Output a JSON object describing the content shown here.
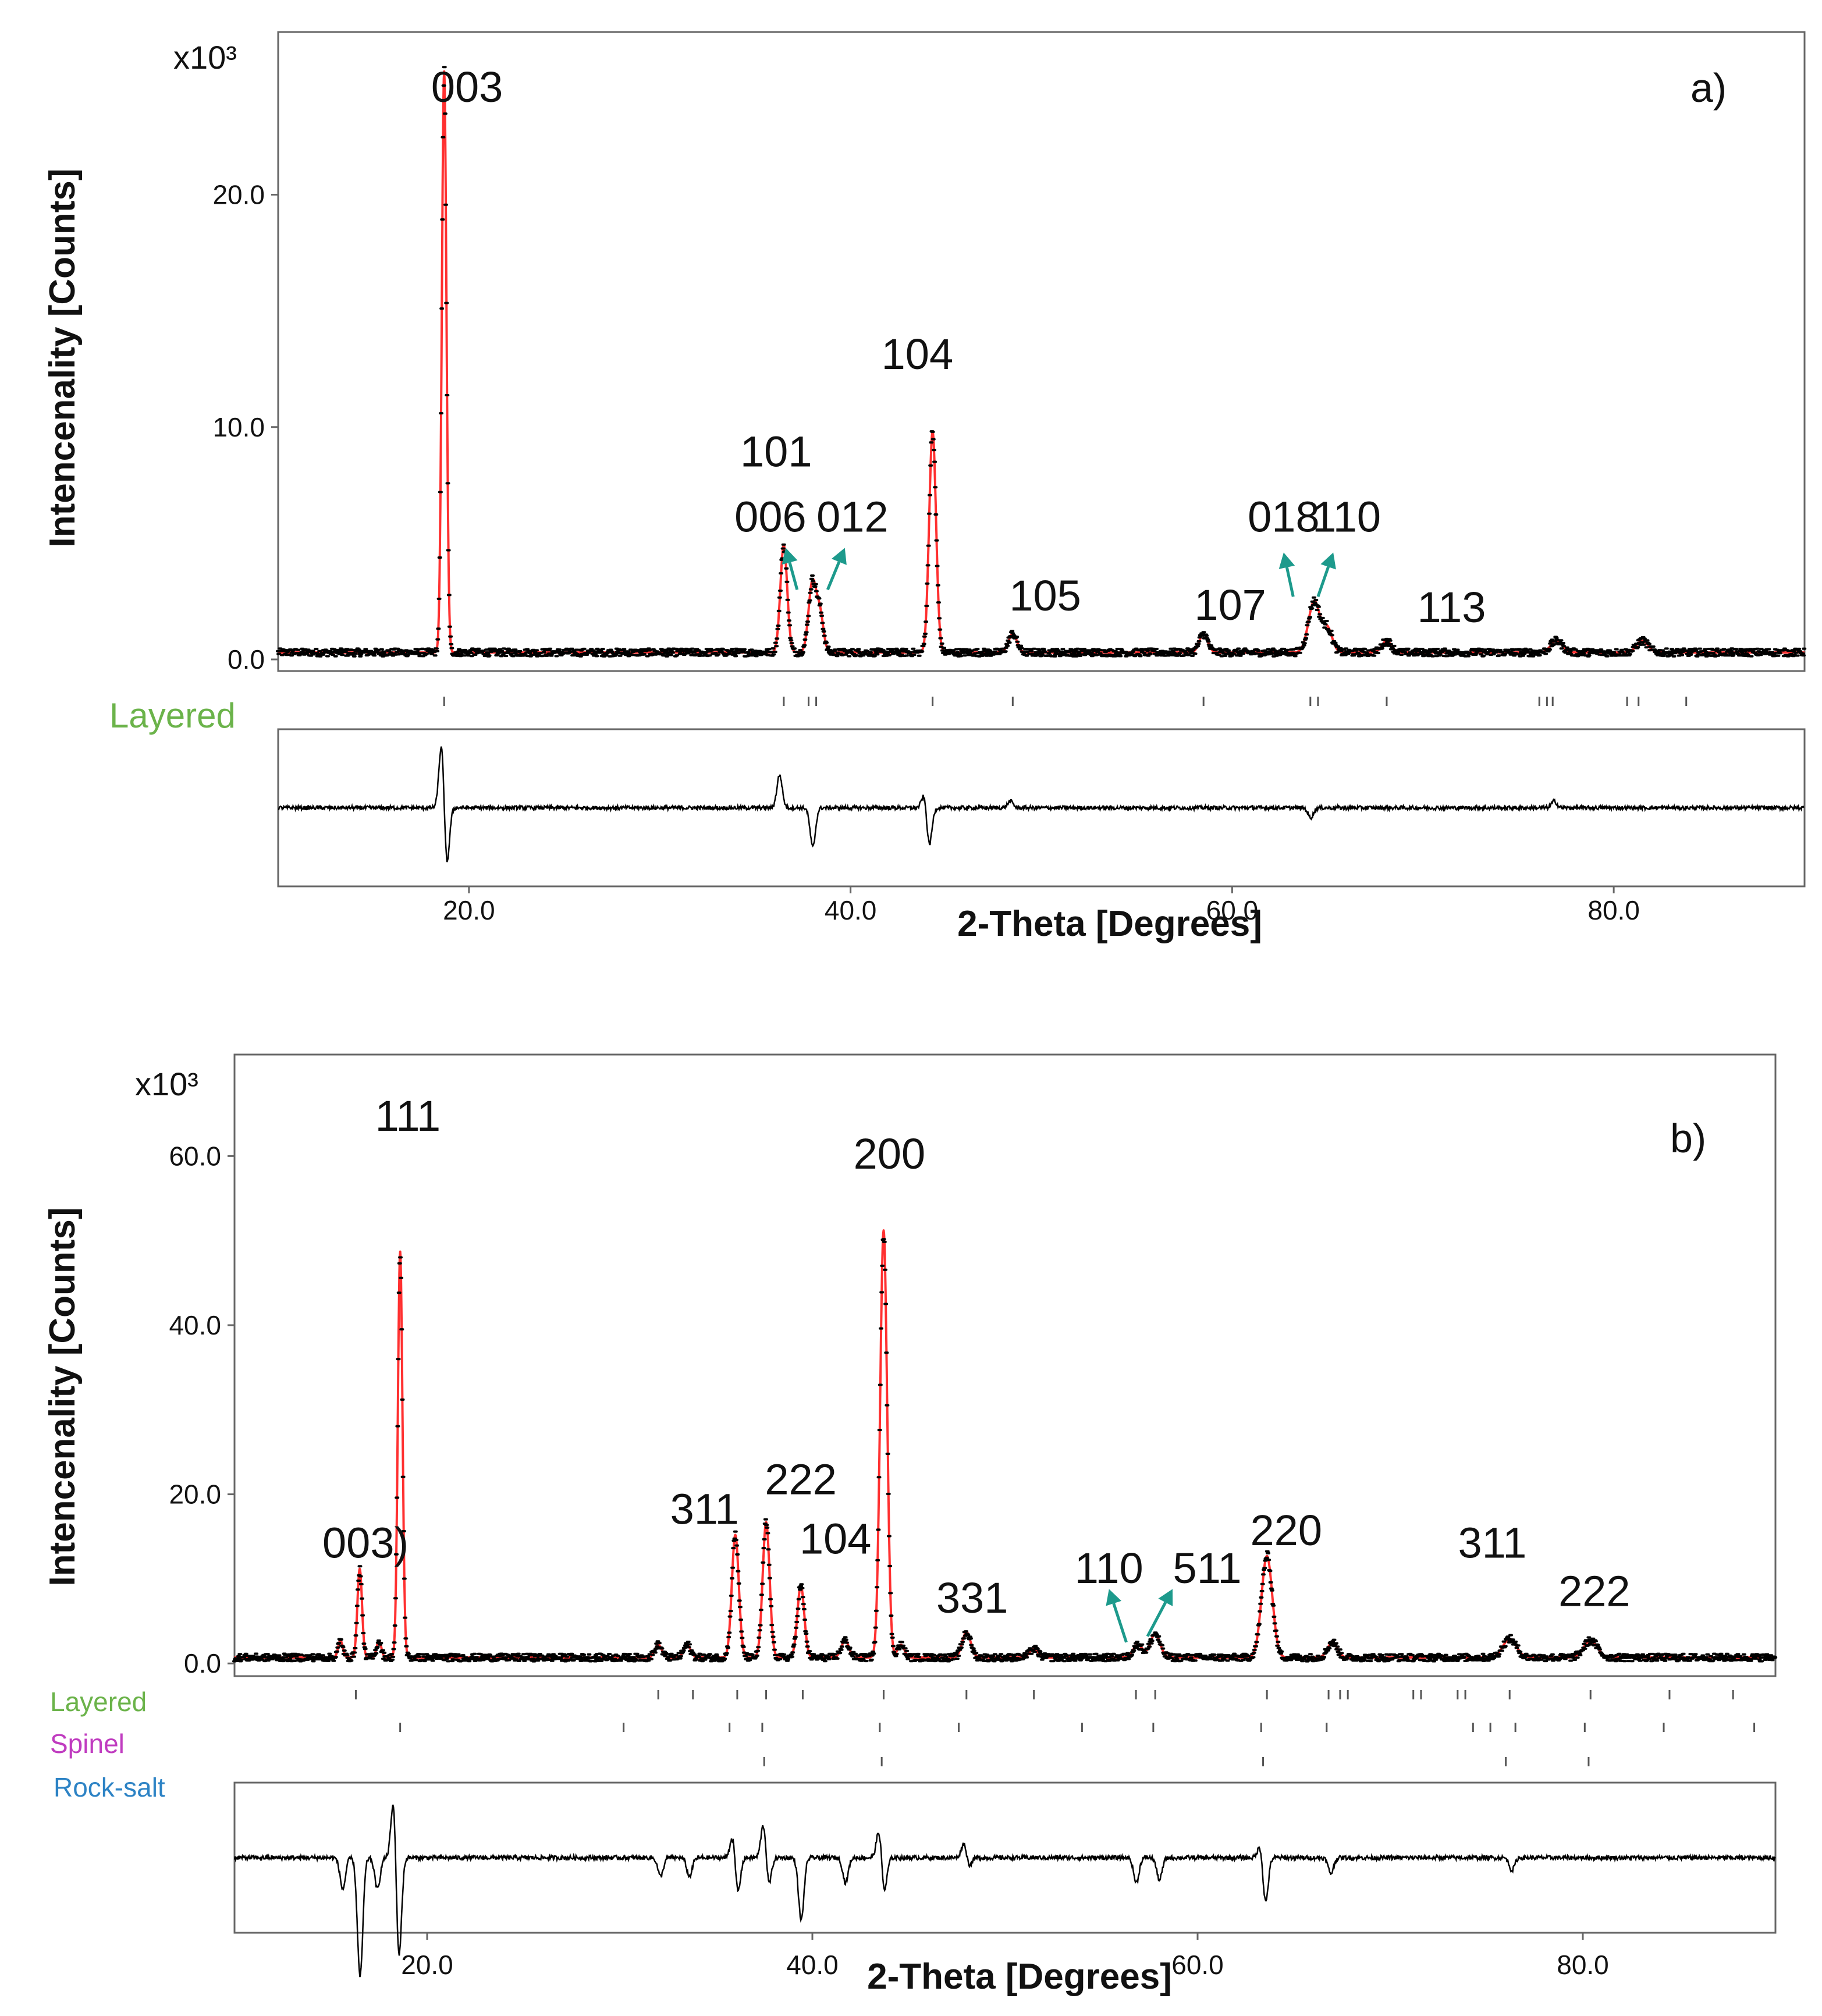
{
  "chart_data": [
    {
      "type": "line",
      "panel_label": "a)",
      "xlabel": "2-Theta [Degrees]",
      "ylabel": "Intencenality [Counts]",
      "y_multiplier": "x10³",
      "xlim": [
        10,
        90
      ],
      "ylim": [
        -0.5,
        27
      ],
      "x_ticks": [
        "20.0",
        "40.0",
        "60.0",
        "80.0"
      ],
      "y_ticks": [
        "0.0",
        "10.0",
        "20.0"
      ],
      "x_tick_values": [
        20,
        40,
        60,
        80
      ],
      "y_tick_values": [
        0,
        10,
        20
      ],
      "baseline": 0.3,
      "series": [
        {
          "name": "Observed",
          "color": "#000000",
          "style": "dots"
        },
        {
          "name": "Calculated",
          "color": "#ff3030",
          "style": "line"
        },
        {
          "name": "Difference",
          "color": "#000000",
          "style": "line"
        }
      ],
      "peaks": [
        {
          "x": 18.7,
          "y": 25.0,
          "w": 0.12
        },
        {
          "x": 36.5,
          "y": 4.6,
          "w": 0.18
        },
        {
          "x": 38.0,
          "y": 3.0,
          "w": 0.2
        },
        {
          "x": 38.4,
          "y": 1.6,
          "w": 0.18
        },
        {
          "x": 44.3,
          "y": 9.5,
          "w": 0.18
        },
        {
          "x": 48.5,
          "y": 0.8,
          "w": 0.22
        },
        {
          "x": 58.5,
          "y": 0.8,
          "w": 0.22
        },
        {
          "x": 64.3,
          "y": 2.2,
          "w": 0.3
        },
        {
          "x": 65.0,
          "y": 1.0,
          "w": 0.25
        },
        {
          "x": 68.1,
          "y": 0.5,
          "w": 0.25
        },
        {
          "x": 77.0,
          "y": 0.5,
          "w": 0.3
        },
        {
          "x": 81.5,
          "y": 0.5,
          "w": 0.3
        }
      ],
      "peak_labels": [
        {
          "text": "003",
          "x": 19.9,
          "y": 24.0
        },
        {
          "text": "101",
          "x": 36.1,
          "y": 8.3
        },
        {
          "text": "006",
          "x": 35.8,
          "y": 5.5
        },
        {
          "text": "012",
          "x": 40.1,
          "y": 5.5
        },
        {
          "text": "104",
          "x": 43.5,
          "y": 12.5
        },
        {
          "text": "105",
          "x": 50.2,
          "y": 2.1
        },
        {
          "text": "107",
          "x": 59.9,
          "y": 1.7
        },
        {
          "text": "018",
          "x": 62.7,
          "y": 5.5
        },
        {
          "text": "110",
          "x": 66.0,
          "y": 5.5
        },
        {
          "text": "113",
          "x": 71.5,
          "y": 1.6
        }
      ],
      "arrows": [
        {
          "x1": 37.2,
          "y1": 3.0,
          "x2": 36.6,
          "y2": 4.8
        },
        {
          "x1": 38.8,
          "y1": 3.0,
          "x2": 39.7,
          "y2": 4.8
        },
        {
          "x1": 63.2,
          "y1": 2.7,
          "x2": 62.7,
          "y2": 4.6
        },
        {
          "x1": 64.5,
          "y1": 2.7,
          "x2": 65.3,
          "y2": 4.6
        }
      ],
      "phases": [
        {
          "name": "Layered",
          "color": "#6bb34a",
          "ticks": [
            18.7,
            36.5,
            37.8,
            38.2,
            44.3,
            48.5,
            58.5,
            64.1,
            64.5,
            68.1,
            76.1,
            76.5,
            76.8,
            80.7,
            81.3,
            83.8
          ]
        }
      ],
      "difference_features": [
        {
          "x": 18.7,
          "amp": [
            2.2,
            -2.0
          ]
        },
        {
          "x": 36.4,
          "amp": [
            1.0,
            0
          ]
        },
        {
          "x": 37.9,
          "amp": [
            0,
            -1.2
          ]
        },
        {
          "x": 44.0,
          "amp": [
            0.5,
            -1.2
          ]
        },
        {
          "x": 48.5,
          "amp": [
            0.2,
            0
          ]
        },
        {
          "x": 64.0,
          "amp": [
            0,
            -0.3
          ]
        },
        {
          "x": 77.0,
          "amp": [
            0.2,
            0
          ]
        }
      ]
    },
    {
      "type": "line",
      "panel_label": "b)",
      "xlabel": "2-Theta [Degrees]",
      "ylabel": "Intencenality [Counts]",
      "y_multiplier": "x10³",
      "xlim": [
        10,
        90
      ],
      "ylim": [
        -1.5,
        72
      ],
      "x_ticks": [
        "20.0",
        "40.0",
        "60.0",
        "80.0"
      ],
      "y_ticks": [
        "0.0",
        "20.0",
        "40.0",
        "60.0"
      ],
      "x_tick_values": [
        20,
        40,
        60,
        80
      ],
      "y_tick_values": [
        0,
        20,
        40,
        60
      ],
      "baseline": 0.7,
      "series": [
        {
          "name": "Observed",
          "color": "#000000",
          "style": "dots"
        },
        {
          "name": "Calculated",
          "color": "#ff3030",
          "style": "line"
        },
        {
          "name": "Difference",
          "color": "#000000",
          "style": "line"
        }
      ],
      "peaks": [
        {
          "x": 15.5,
          "y": 2.0,
          "w": 0.12
        },
        {
          "x": 16.5,
          "y": 10.5,
          "w": 0.12
        },
        {
          "x": 17.5,
          "y": 2.0,
          "w": 0.12
        },
        {
          "x": 18.6,
          "y": 48.0,
          "w": 0.12
        },
        {
          "x": 32.0,
          "y": 1.5,
          "w": 0.18
        },
        {
          "x": 33.5,
          "y": 1.5,
          "w": 0.18
        },
        {
          "x": 36.0,
          "y": 14.5,
          "w": 0.18
        },
        {
          "x": 37.6,
          "y": 16.0,
          "w": 0.18
        },
        {
          "x": 39.4,
          "y": 8.5,
          "w": 0.18
        },
        {
          "x": 41.7,
          "y": 2.0,
          "w": 0.2
        },
        {
          "x": 43.7,
          "y": 50.5,
          "w": 0.18
        },
        {
          "x": 44.6,
          "y": 1.5,
          "w": 0.18
        },
        {
          "x": 48.0,
          "y": 3.0,
          "w": 0.22
        },
        {
          "x": 51.5,
          "y": 1.0,
          "w": 0.22
        },
        {
          "x": 56.9,
          "y": 1.5,
          "w": 0.25
        },
        {
          "x": 57.8,
          "y": 2.8,
          "w": 0.25
        },
        {
          "x": 63.6,
          "y": 12.0,
          "w": 0.28
        },
        {
          "x": 67.0,
          "y": 1.8,
          "w": 0.25
        },
        {
          "x": 76.2,
          "y": 2.2,
          "w": 0.35
        },
        {
          "x": 80.4,
          "y": 2.0,
          "w": 0.35
        }
      ],
      "peak_labels": [
        {
          "text": "111",
          "x": 19.0,
          "y": 63.0
        },
        {
          "text": "003)",
          "x": 16.8,
          "y": 12.5
        },
        {
          "text": "311",
          "x": 34.4,
          "y": 16.5
        },
        {
          "text": "222",
          "x": 39.4,
          "y": 20.0
        },
        {
          "text": "104",
          "x": 41.2,
          "y": 13.0
        },
        {
          "text": "200",
          "x": 44.0,
          "y": 58.5
        },
        {
          "text": "331",
          "x": 48.3,
          "y": 6.0
        },
        {
          "text": "110",
          "x": 55.4,
          "y": 9.5
        },
        {
          "text": "511",
          "x": 60.5,
          "y": 9.5
        },
        {
          "text": "220",
          "x": 64.6,
          "y": 14.0
        },
        {
          "text": "311",
          "x": 75.3,
          "y": 12.5
        },
        {
          "text": "222",
          "x": 80.6,
          "y": 6.8
        }
      ],
      "arrows": [
        {
          "x1": 56.3,
          "y1": 2.5,
          "x2": 55.4,
          "y2": 8.8
        },
        {
          "x1": 57.4,
          "y1": 3.2,
          "x2": 58.7,
          "y2": 8.8
        }
      ],
      "phases": [
        {
          "name": "Layered",
          "color": "#6bb34a",
          "ticks": [
            16.3,
            32.0,
            33.8,
            36.1,
            37.6,
            39.5,
            43.7,
            48.0,
            51.5,
            56.8,
            57.8,
            63.6,
            66.8,
            67.4,
            67.8,
            71.2,
            71.6,
            73.5,
            73.9,
            76.2,
            80.4,
            84.5,
            87.8
          ]
        },
        {
          "name": "Spinel",
          "color": "#c03cc0",
          "ticks": [
            18.6,
            30.2,
            35.7,
            37.4,
            43.5,
            47.6,
            54.0,
            57.7,
            63.3,
            66.7,
            74.3,
            75.2,
            76.5,
            80.1,
            84.2,
            88.9
          ]
        },
        {
          "name": "Rock-salt",
          "color": "#2d83c5",
          "ticks": [
            37.5,
            43.6,
            63.4,
            76.0,
            80.3
          ]
        }
      ],
      "difference_features": [
        {
          "x": 15.5,
          "amp": [
            0,
            -1.0
          ]
        },
        {
          "x": 16.4,
          "amp": [
            0,
            -3.8
          ]
        },
        {
          "x": 17.3,
          "amp": [
            0,
            -1.0
          ]
        },
        {
          "x": 18.4,
          "amp": [
            2.2,
            -3.5
          ]
        },
        {
          "x": 32.0,
          "amp": [
            0,
            -0.6
          ]
        },
        {
          "x": 33.5,
          "amp": [
            0,
            -0.6
          ]
        },
        {
          "x": 36.0,
          "amp": [
            0.8,
            -1.2
          ]
        },
        {
          "x": 37.6,
          "amp": [
            1.2,
            -1.0
          ]
        },
        {
          "x": 39.3,
          "amp": [
            0,
            -2.0
          ]
        },
        {
          "x": 41.6,
          "amp": [
            0,
            -0.8
          ]
        },
        {
          "x": 43.6,
          "amp": [
            1.0,
            -1.2
          ]
        },
        {
          "x": 48.0,
          "amp": [
            0.5,
            -0.3
          ]
        },
        {
          "x": 56.7,
          "amp": [
            0,
            -0.8
          ]
        },
        {
          "x": 57.9,
          "amp": [
            0,
            -0.7
          ]
        },
        {
          "x": 63.4,
          "amp": [
            0.5,
            -1.5
          ]
        },
        {
          "x": 66.8,
          "amp": [
            0,
            -0.5
          ]
        },
        {
          "x": 76.2,
          "amp": [
            0,
            -0.4
          ]
        }
      ]
    }
  ]
}
